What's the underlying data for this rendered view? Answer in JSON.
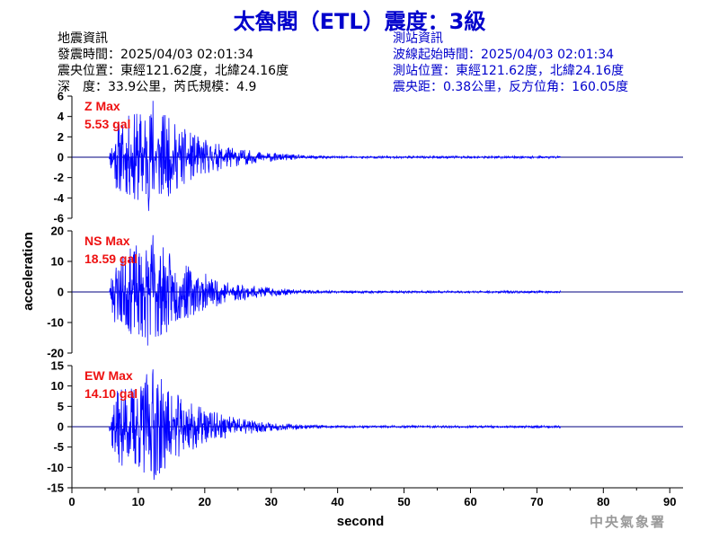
{
  "title": "太魯閣（ETL）震度：3級",
  "quake_info": {
    "heading": "地震資訊",
    "origin_time": "發震時間：2025/04/03 02:01:34",
    "epicenter": "震央位置：東經121.62度，北緯24.16度",
    "depth_magnitude": "深　度：33.9公里，芮氏規模：4.9"
  },
  "station_info": {
    "heading": "測站資訊",
    "wave_start": "波線起始時間：2025/04/03 02:01:34",
    "station_location": "測站位置：東經121.62度，北緯24.16度",
    "distance": "震央距：0.38公里，反方位角：160.05度"
  },
  "agency": "中央氣象署",
  "colors": {
    "trace": "#0000ff",
    "title": "#0000cc",
    "max_label": "#ee1111",
    "axis": "#000000",
    "zero_line": "#00007f"
  },
  "chart_data": {
    "type": "line",
    "xlabel": "second",
    "ylabel": "acceleration",
    "xlim": [
      0,
      92
    ],
    "x_ticks": [
      0,
      10,
      20,
      30,
      40,
      50,
      60,
      70,
      80,
      90
    ],
    "onset_s": 5.6,
    "end_s": 73.5,
    "peak_s": 12.2,
    "panels": [
      {
        "id": "Z",
        "label": "Z Max",
        "max_text": "5.53 gal",
        "peak": 5.53,
        "ylim": [
          -6,
          6
        ],
        "y_ticks": [
          6,
          4,
          2,
          0,
          -2,
          -4,
          -6
        ]
      },
      {
        "id": "NS",
        "label": "NS Max",
        "max_text": "18.59 gal",
        "peak": 18.59,
        "ylim": [
          -20,
          20
        ],
        "y_ticks": [
          20,
          10,
          0,
          -10,
          -20
        ]
      },
      {
        "id": "EW",
        "label": "EW Max",
        "max_text": "14.10 gal",
        "peak": 14.1,
        "ylim": [
          -15,
          15
        ],
        "y_ticks": [
          15,
          10,
          5,
          0,
          -5,
          -10,
          -15
        ]
      }
    ]
  }
}
